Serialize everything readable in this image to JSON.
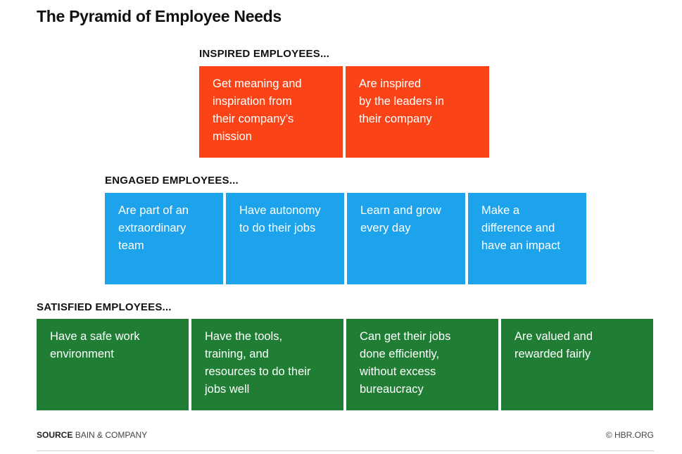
{
  "title": "The Pyramid of Employee Needs",
  "colors": {
    "inspired": "#fb4318",
    "engaged": "#1ca3ec",
    "satisfied": "#1f7e34"
  },
  "tiers": {
    "inspired": {
      "label": "INSPIRED EMPLOYEES...",
      "items": [
        "Get meaning and\ninspiration from\ntheir company’s\nmission",
        "Are inspired\nby the leaders in\ntheir company"
      ]
    },
    "engaged": {
      "label": "ENGAGED EMPLOYEES...",
      "items": [
        "Are part of an\nextraordinary\nteam",
        "Have autonomy\nto do their jobs",
        "Learn and grow\nevery day",
        "Make a\ndifference and\nhave an impact"
      ]
    },
    "satisfied": {
      "label": "SATISFIED EMPLOYEES...",
      "items": [
        "Have a safe work\nenvironment",
        "Have the tools,\ntraining, and\nresources to do their\njobs well",
        "Can get their jobs\ndone efficiently,\nwithout excess\nbureaucracy",
        "Are valued and\nrewarded fairly"
      ]
    }
  },
  "footer": {
    "source_key": "SOURCE",
    "source_value": "BAIN & COMPANY",
    "credit": "© HBR.ORG"
  }
}
